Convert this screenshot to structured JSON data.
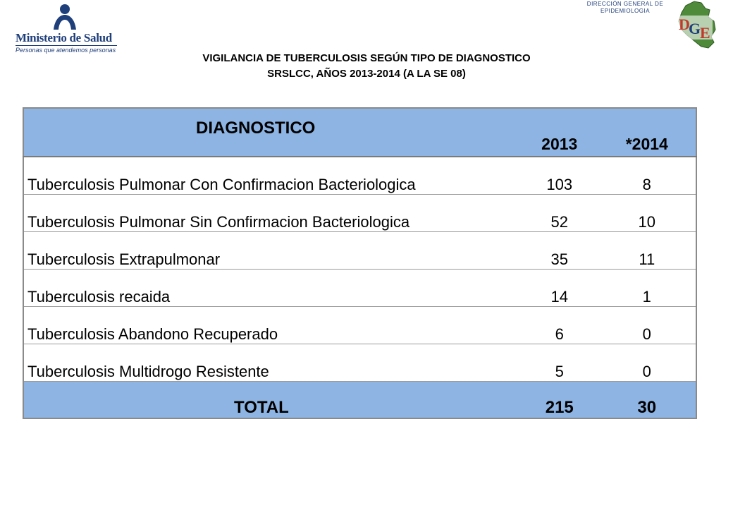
{
  "header": {
    "ministry_name": "Ministerio de Salud",
    "ministry_tagline": "Personas que atendemos personas",
    "dge_line1": "DIRECCIÓN GENERAL DE",
    "dge_line2": "EPIDEMIOLOGIA",
    "dge_logo_letters": "DGE"
  },
  "title": {
    "line1": "VIGILANCIA DE TUBERCULOSIS SEGÚN TIPO DE DIAGNOSTICO",
    "line2": "SRSLCC, AÑOS 2013-2014 (A LA SE 08)"
  },
  "table": {
    "columns": [
      "DIAGNOSTICO",
      "2013",
      "*2014"
    ],
    "rows": [
      {
        "label": "Tuberculosis Pulmonar Con Confirmacion Bacteriologica",
        "y2013": "103",
        "y2014": "8"
      },
      {
        "label": "Tuberculosis Pulmonar Sin Confirmacion Bacteriologica",
        "y2013": "52",
        "y2014": "10"
      },
      {
        "label": "Tuberculosis Extrapulmonar",
        "y2013": "35",
        "y2014": "11"
      },
      {
        "label": "Tuberculosis recaida",
        "y2013": "14",
        "y2014": "1"
      },
      {
        "label": "Tuberculosis Abandono Recuperado",
        "y2013": "6",
        "y2014": "0"
      },
      {
        "label": "Tuberculosis Multidrogo Resistente",
        "y2013": "5",
        "y2014": "0"
      }
    ],
    "total": {
      "label": "TOTAL",
      "y2013": "215",
      "y2014": "30"
    }
  },
  "colors": {
    "header_fill": "#8db4e2",
    "brand_blue": "#1f3f7a",
    "map_green": "#4e8a3a"
  }
}
